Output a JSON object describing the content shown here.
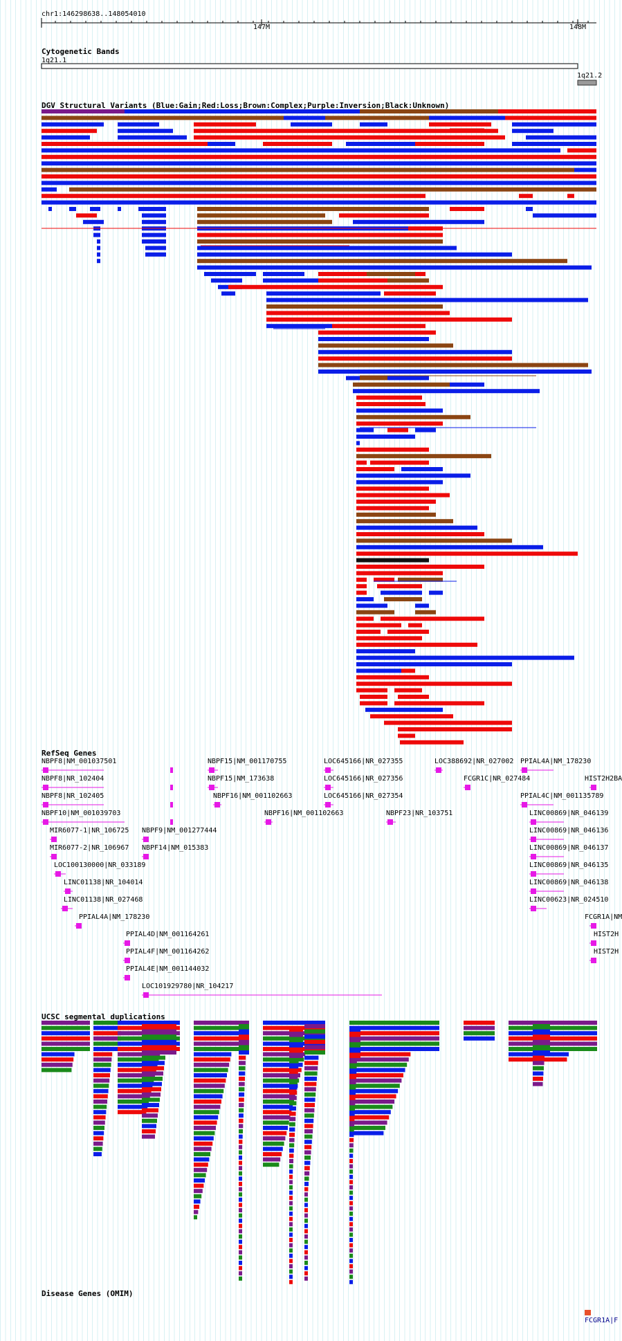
{
  "browser": {
    "region": "chr1:146298638..148054010",
    "ruler_ticks": [
      "147M",
      "148M"
    ]
  },
  "tracks": {
    "cytoband": {
      "title": "Cytogenetic Bands",
      "bands": [
        {
          "name": "1q21.1"
        },
        {
          "name": "1q21.2"
        }
      ]
    },
    "dgv": {
      "title": "DGV Structural Variants (Blue:Gain;Red:Loss;Brown:Complex;Purple:Inversion;Black:Unknown)"
    },
    "refseq": {
      "title": "RefSeq Genes"
    },
    "segdup": {
      "title": "UCSC segmental duplications"
    },
    "omim": {
      "title": "Disease Genes (OMIM)",
      "label": "FCGR1A|F"
    }
  },
  "colors": {
    "gain": "#0a1ee8",
    "loss": "#ee0a0a",
    "complex": "#8b4513",
    "inversion": "#7a1a8a",
    "unknown": "#111111",
    "gene": "#e619e6",
    "green": "#1a8a1a",
    "omim": "#e8502a",
    "grid": "#d7f1f3"
  },
  "genes": [
    {
      "label": "NBPF8|NM_001037501"
    },
    {
      "label": "NBPF8|NR_102404"
    },
    {
      "label": "NBPF8|NR_102405"
    },
    {
      "label": "NBPF10|NM_001039703"
    },
    {
      "label": "MIR6077-1|NR_106725"
    },
    {
      "label": "MIR6077-2|NR_106967"
    },
    {
      "label": "LOC100130000|NR_033189"
    },
    {
      "label": "LINC01138|NR_104014"
    },
    {
      "label": "LINC01138|NR_027468"
    },
    {
      "label": "PPIAL4A|NM_178230"
    },
    {
      "label": "NBPF9|NM_001277444"
    },
    {
      "label": "NBPF14|NM_015383"
    },
    {
      "label": "PPIAL4D|NM_001164261"
    },
    {
      "label": "PPIAL4F|NM_001164262"
    },
    {
      "label": "PPIAL4E|NM_001144032"
    },
    {
      "label": "LOC101929780|NR_104217"
    },
    {
      "label": "NBPF15|NM_001170755"
    },
    {
      "label": "NBPF15|NM_173638"
    },
    {
      "label": "NBPF16|NM_001102663"
    },
    {
      "label": "NBPF16|NM_001102663"
    },
    {
      "label": "LOC645166|NR_027355"
    },
    {
      "label": "LOC645166|NR_027356"
    },
    {
      "label": "LOC645166|NR_027354"
    },
    {
      "label": "NBPF23|NR_103751"
    },
    {
      "label": "LOC388692|NR_027002"
    },
    {
      "label": "FCGR1C|NR_027484"
    },
    {
      "label": "PPIAL4A|NM_178230"
    },
    {
      "label": "PPIAL4C|NM_001135789"
    },
    {
      "label": "LINC00869|NR_046139"
    },
    {
      "label": "LINC00869|NR_046136"
    },
    {
      "label": "LINC00869|NR_046137"
    },
    {
      "label": "LINC00869|NR_046135"
    },
    {
      "label": "LINC00869|NR_046138"
    },
    {
      "label": "LINC00623|NR_024510"
    },
    {
      "label": "HIST2H2BA"
    },
    {
      "label": "FCGR1A|NM"
    },
    {
      "label": "HIST2H"
    },
    {
      "label": "HIST2H"
    }
  ]
}
